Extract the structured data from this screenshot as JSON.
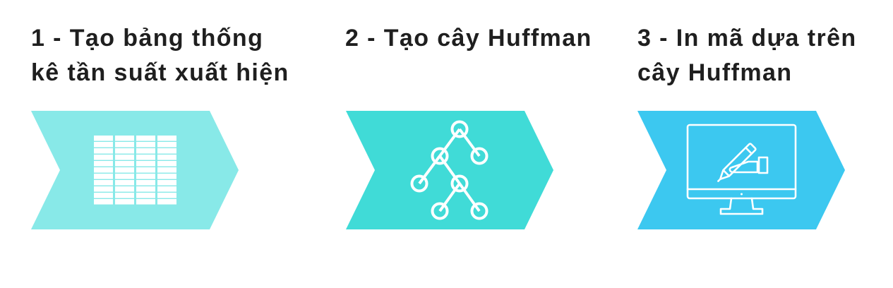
{
  "steps": [
    {
      "title_lines": [
        "1 - Tạo bảng thống",
        "kê tần suất xuất hiện"
      ],
      "color": "#88e9e8",
      "icon": "table-grid-icon"
    },
    {
      "title_lines": [
        "2 - Tạo cây Huffman"
      ],
      "color": "#40dbd7",
      "icon": "tree-diagram-icon"
    },
    {
      "title_lines": [
        "3 - In mã dựa trên",
        "cây Huffman"
      ],
      "color": "#3cc8f0",
      "icon": "monitor-pen-icon"
    }
  ]
}
